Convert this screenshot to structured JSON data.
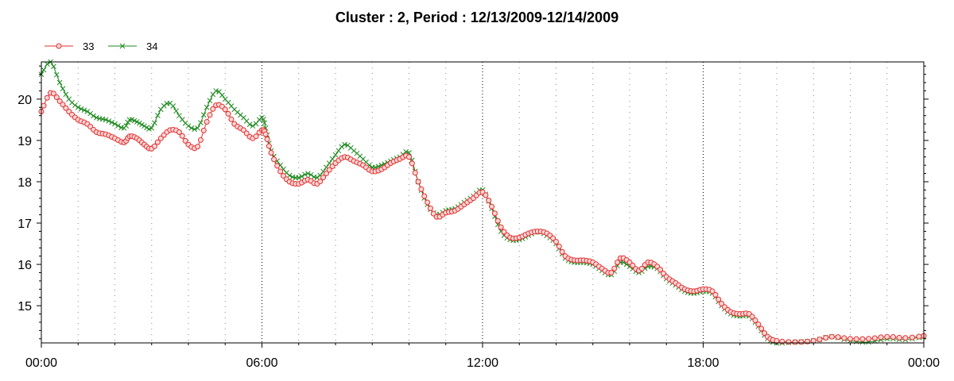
{
  "chart_data": {
    "type": "line",
    "title": "Cluster : 2, Period : 12/13/2009-12/14/2009",
    "xlabel": "",
    "ylabel": "",
    "x_ticks": [
      "00:00",
      "06:00",
      "12:00",
      "18:00",
      "00:00"
    ],
    "y_ticks": [
      "15",
      "16",
      "17",
      "18",
      "19",
      "20"
    ],
    "xlim_hours": [
      0,
      24
    ],
    "ylim": [
      14.1,
      20.9
    ],
    "grid": "vertical dotted lines",
    "legend_position": "top-left",
    "series": [
      {
        "name": "33",
        "color": "#e03030",
        "marker": "circle",
        "points": [
          [
            0.0,
            19.7
          ],
          [
            0.25,
            20.15
          ],
          [
            0.5,
            19.95
          ],
          [
            0.75,
            19.7
          ],
          [
            1.0,
            19.5
          ],
          [
            1.25,
            19.4
          ],
          [
            1.5,
            19.2
          ],
          [
            1.75,
            19.15
          ],
          [
            2.0,
            19.05
          ],
          [
            2.25,
            18.95
          ],
          [
            2.4,
            19.1
          ],
          [
            2.6,
            19.05
          ],
          [
            2.8,
            18.9
          ],
          [
            3.0,
            18.8
          ],
          [
            3.25,
            19.05
          ],
          [
            3.5,
            19.25
          ],
          [
            3.75,
            19.2
          ],
          [
            4.0,
            18.9
          ],
          [
            4.25,
            18.85
          ],
          [
            4.5,
            19.45
          ],
          [
            4.75,
            19.85
          ],
          [
            5.0,
            19.75
          ],
          [
            5.25,
            19.4
          ],
          [
            5.5,
            19.25
          ],
          [
            5.75,
            19.05
          ],
          [
            6.0,
            19.25
          ],
          [
            6.1,
            19.15
          ],
          [
            6.25,
            18.7
          ],
          [
            6.5,
            18.25
          ],
          [
            6.75,
            18.0
          ],
          [
            7.0,
            17.95
          ],
          [
            7.25,
            18.05
          ],
          [
            7.5,
            17.95
          ],
          [
            7.75,
            18.2
          ],
          [
            8.0,
            18.45
          ],
          [
            8.25,
            18.6
          ],
          [
            8.5,
            18.5
          ],
          [
            8.75,
            18.4
          ],
          [
            9.0,
            18.25
          ],
          [
            9.25,
            18.3
          ],
          [
            9.5,
            18.45
          ],
          [
            9.75,
            18.55
          ],
          [
            10.0,
            18.6
          ],
          [
            10.25,
            18.0
          ],
          [
            10.5,
            17.5
          ],
          [
            10.75,
            17.15
          ],
          [
            11.0,
            17.25
          ],
          [
            11.25,
            17.3
          ],
          [
            11.5,
            17.45
          ],
          [
            11.75,
            17.6
          ],
          [
            12.0,
            17.75
          ],
          [
            12.25,
            17.4
          ],
          [
            12.5,
            16.9
          ],
          [
            12.75,
            16.65
          ],
          [
            13.0,
            16.65
          ],
          [
            13.25,
            16.75
          ],
          [
            13.5,
            16.8
          ],
          [
            13.75,
            16.75
          ],
          [
            14.0,
            16.55
          ],
          [
            14.25,
            16.2
          ],
          [
            14.5,
            16.1
          ],
          [
            14.75,
            16.1
          ],
          [
            15.0,
            16.05
          ],
          [
            15.25,
            15.9
          ],
          [
            15.5,
            15.8
          ],
          [
            15.75,
            16.15
          ],
          [
            16.0,
            16.05
          ],
          [
            16.25,
            15.85
          ],
          [
            16.5,
            16.05
          ],
          [
            16.75,
            15.95
          ],
          [
            17.0,
            15.7
          ],
          [
            17.25,
            15.55
          ],
          [
            17.5,
            15.4
          ],
          [
            17.75,
            15.35
          ],
          [
            18.0,
            15.4
          ],
          [
            18.25,
            15.35
          ],
          [
            18.5,
            15.05
          ],
          [
            18.75,
            14.85
          ],
          [
            19.0,
            14.8
          ],
          [
            19.25,
            14.8
          ],
          [
            19.5,
            14.55
          ],
          [
            19.75,
            14.25
          ],
          [
            20.0,
            14.15
          ],
          [
            20.5,
            14.12
          ],
          [
            21.0,
            14.15
          ],
          [
            21.5,
            14.25
          ],
          [
            22.0,
            14.2
          ],
          [
            22.5,
            14.2
          ],
          [
            23.0,
            14.25
          ],
          [
            23.5,
            14.22
          ],
          [
            24.0,
            14.27
          ]
        ]
      },
      {
        "name": "34",
        "color": "#1f8a1f",
        "marker": "x",
        "points": [
          [
            0.0,
            20.6
          ],
          [
            0.25,
            20.9
          ],
          [
            0.5,
            20.4
          ],
          [
            0.75,
            20.0
          ],
          [
            1.0,
            19.8
          ],
          [
            1.25,
            19.7
          ],
          [
            1.5,
            19.55
          ],
          [
            1.75,
            19.5
          ],
          [
            2.0,
            19.4
          ],
          [
            2.25,
            19.3
          ],
          [
            2.4,
            19.5
          ],
          [
            2.6,
            19.45
          ],
          [
            2.8,
            19.35
          ],
          [
            3.0,
            19.3
          ],
          [
            3.25,
            19.75
          ],
          [
            3.5,
            19.9
          ],
          [
            3.75,
            19.6
          ],
          [
            4.0,
            19.35
          ],
          [
            4.25,
            19.3
          ],
          [
            4.5,
            19.8
          ],
          [
            4.75,
            20.2
          ],
          [
            5.0,
            20.0
          ],
          [
            5.25,
            19.75
          ],
          [
            5.5,
            19.55
          ],
          [
            5.75,
            19.35
          ],
          [
            6.0,
            19.55
          ],
          [
            6.1,
            19.3
          ],
          [
            6.25,
            18.75
          ],
          [
            6.5,
            18.4
          ],
          [
            6.75,
            18.15
          ],
          [
            7.0,
            18.1
          ],
          [
            7.25,
            18.2
          ],
          [
            7.5,
            18.1
          ],
          [
            7.75,
            18.35
          ],
          [
            8.0,
            18.65
          ],
          [
            8.25,
            18.9
          ],
          [
            8.5,
            18.75
          ],
          [
            8.75,
            18.55
          ],
          [
            9.0,
            18.35
          ],
          [
            9.25,
            18.4
          ],
          [
            9.5,
            18.5
          ],
          [
            9.75,
            18.6
          ],
          [
            10.0,
            18.7
          ],
          [
            10.25,
            18.0
          ],
          [
            10.5,
            17.45
          ],
          [
            10.75,
            17.2
          ],
          [
            11.0,
            17.3
          ],
          [
            11.25,
            17.35
          ],
          [
            11.5,
            17.5
          ],
          [
            11.75,
            17.65
          ],
          [
            12.0,
            17.8
          ],
          [
            12.25,
            17.35
          ],
          [
            12.5,
            16.8
          ],
          [
            12.75,
            16.6
          ],
          [
            13.0,
            16.6
          ],
          [
            13.25,
            16.7
          ],
          [
            13.5,
            16.8
          ],
          [
            13.75,
            16.7
          ],
          [
            14.0,
            16.5
          ],
          [
            14.25,
            16.15
          ],
          [
            14.5,
            16.05
          ],
          [
            14.75,
            16.05
          ],
          [
            15.0,
            16.0
          ],
          [
            15.25,
            15.85
          ],
          [
            15.5,
            15.75
          ],
          [
            15.75,
            16.05
          ],
          [
            16.0,
            15.95
          ],
          [
            16.25,
            15.8
          ],
          [
            16.5,
            15.95
          ],
          [
            16.75,
            15.9
          ],
          [
            17.0,
            15.65
          ],
          [
            17.25,
            15.5
          ],
          [
            17.5,
            15.35
          ],
          [
            17.75,
            15.3
          ],
          [
            18.0,
            15.35
          ],
          [
            18.25,
            15.3
          ],
          [
            18.5,
            15.0
          ],
          [
            18.75,
            14.8
          ],
          [
            19.0,
            14.75
          ],
          [
            19.25,
            14.75
          ],
          [
            19.5,
            14.5
          ],
          [
            19.75,
            14.2
          ],
          [
            20.0,
            14.1
          ],
          [
            20.5,
            14.12
          ],
          [
            21.0,
            14.15
          ],
          [
            21.5,
            14.25
          ],
          [
            22.0,
            14.15
          ],
          [
            22.5,
            14.12
          ],
          [
            23.0,
            14.2
          ],
          [
            23.5,
            14.18
          ],
          [
            24.0,
            14.25
          ]
        ]
      }
    ]
  }
}
